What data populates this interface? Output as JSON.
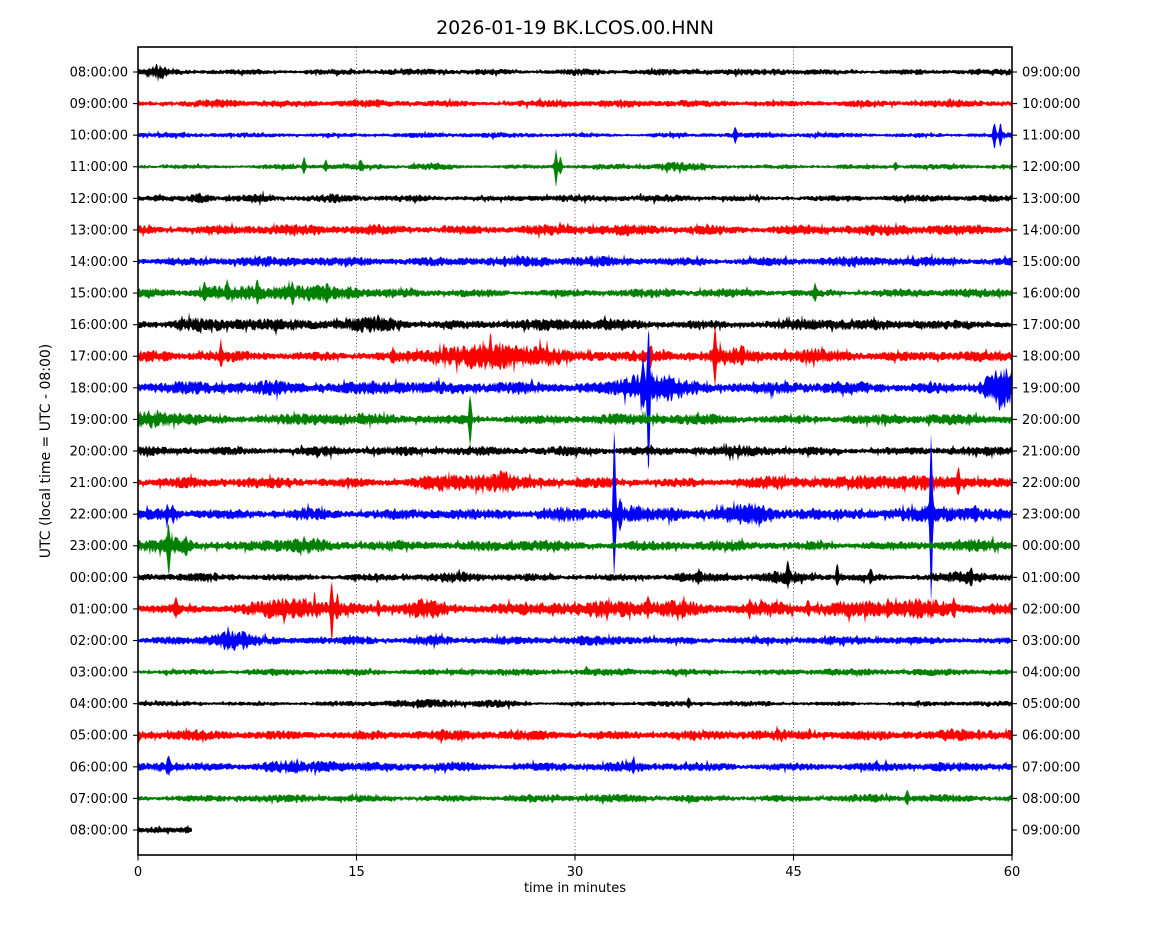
{
  "title": "2026-01-19 BK.LCOS.00.HNN",
  "y_axis": {
    "label": "UTC (local time = UTC - 08:00)"
  },
  "x_axis": {
    "label": "time in minutes",
    "ticks": [
      0,
      15,
      30,
      45,
      60
    ],
    "grid_minutes": [
      15,
      30,
      45
    ],
    "range": [
      0,
      60
    ]
  },
  "colors": {
    "frame": "#000000",
    "grid": "#000000",
    "trace_map": {
      "black": "#000000",
      "red": "#ff0000",
      "blue": "#0000ff",
      "green": "#008000"
    }
  },
  "chart_data": {
    "type": "line",
    "subtype": "helicorder-dayplot",
    "station": "BK.LCOS.00.HNN",
    "date": "2026-01-19",
    "minutes_per_row": 60,
    "note": "25 one-hour trace rows; left labels UTC start time, right labels start time + 1h; amp = baseline noise half-height px; bursts=[minute,width_min,rel_amp]; spikes=[minute,up_px,down_px]",
    "rows": [
      {
        "utc": "08:00:00",
        "local": "09:00:00",
        "color": "black",
        "amp": 2.6,
        "bursts": [
          [
            1.4,
            0.5,
            1.6
          ],
          [
            30.5,
            1.2,
            0.5
          ],
          [
            44,
            1,
            0.4
          ]
        ],
        "spikes": []
      },
      {
        "utc": "09:00:00",
        "local": "10:00:00",
        "color": "red",
        "amp": 3.0,
        "bursts": [
          [
            6,
            1.5,
            0.7
          ],
          [
            29,
            1.5,
            0.4
          ]
        ],
        "spikes": []
      },
      {
        "utc": "10:00:00",
        "local": "11:00:00",
        "color": "blue",
        "amp": 2.2,
        "bursts": [],
        "spikes": [
          [
            41,
            7,
            7
          ],
          [
            58.8,
            13,
            13
          ],
          [
            59.2,
            10,
            10
          ]
        ]
      },
      {
        "utc": "11:00:00",
        "local": "12:00:00",
        "color": "green",
        "amp": 2.2,
        "bursts": [
          [
            37,
            1.5,
            1.0
          ],
          [
            20,
            1.5,
            0.5
          ]
        ],
        "spikes": [
          [
            11.4,
            9,
            6
          ],
          [
            12.9,
            7,
            4
          ],
          [
            15.3,
            6,
            4
          ],
          [
            28.7,
            17,
            20
          ],
          [
            29,
            10,
            8
          ],
          [
            52,
            4,
            3
          ]
        ]
      },
      {
        "utc": "12:00:00",
        "local": "13:00:00",
        "color": "black",
        "amp": 2.8,
        "bursts": [
          [
            4.3,
            0.7,
            1.6
          ],
          [
            8.2,
            1,
            0.7
          ],
          [
            13.5,
            0.8,
            0.6
          ],
          [
            28,
            2,
            0.3
          ]
        ],
        "spikes": []
      },
      {
        "utc": "13:00:00",
        "local": "14:00:00",
        "color": "red",
        "amp": 4.4,
        "bursts": [],
        "spikes": []
      },
      {
        "utc": "14:00:00",
        "local": "15:00:00",
        "color": "blue",
        "amp": 4.0,
        "bursts": [
          [
            24,
            4,
            0.25
          ]
        ],
        "spikes": []
      },
      {
        "utc": "15:00:00",
        "local": "16:00:00",
        "color": "green",
        "amp": 3.6,
        "bursts": [
          [
            5,
            1,
            1.1
          ],
          [
            7.5,
            1.2,
            1.2
          ],
          [
            10,
            1.5,
            1.1
          ],
          [
            12.5,
            1.5,
            1.0
          ],
          [
            14.5,
            0.8,
            0.8
          ]
        ],
        "spikes": [
          [
            4.6,
            8,
            6
          ],
          [
            6.1,
            8,
            5
          ],
          [
            8.2,
            8,
            6
          ],
          [
            10.6,
            7,
            5
          ],
          [
            13,
            7,
            5
          ],
          [
            46.5,
            8,
            6
          ]
        ]
      },
      {
        "utc": "16:00:00",
        "local": "17:00:00",
        "color": "black",
        "amp": 4.2,
        "bursts": [
          [
            3.5,
            1.2,
            0.6
          ],
          [
            8,
            2,
            0.4
          ],
          [
            16,
            2.2,
            0.8
          ],
          [
            30,
            3,
            0.3
          ],
          [
            47,
            2,
            0.3
          ]
        ],
        "spikes": []
      },
      {
        "utc": "17:00:00",
        "local": "18:00:00",
        "color": "red",
        "amp": 4.4,
        "bursts": [
          [
            21,
            1.5,
            0.9
          ],
          [
            24.8,
            2.8,
            2.0
          ],
          [
            28,
            1.5,
            0.8
          ],
          [
            33,
            3,
            0.4
          ],
          [
            40.3,
            1.2,
            0.8
          ],
          [
            47,
            2.5,
            0.4
          ],
          [
            55,
            2,
            0.3
          ]
        ],
        "spikes": [
          [
            5.7,
            11,
            9
          ],
          [
            17.5,
            6,
            4
          ],
          [
            35.2,
            9,
            7
          ],
          [
            39.6,
            28,
            24
          ],
          [
            41.5,
            10,
            8
          ]
        ]
      },
      {
        "utc": "18:00:00",
        "local": "19:00:00",
        "color": "blue",
        "amp": 5.0,
        "bursts": [
          [
            10,
            2,
            0.4
          ],
          [
            17,
            2,
            0.6
          ],
          [
            34.8,
            1.8,
            2.2
          ],
          [
            36.5,
            1.5,
            0.8
          ],
          [
            58.9,
            1,
            2.0
          ],
          [
            59.5,
            0.8,
            1.5
          ]
        ],
        "spikes": [
          [
            35.05,
            50,
            80
          ],
          [
            34.7,
            18,
            14
          ]
        ]
      },
      {
        "utc": "19:00:00",
        "local": "20:00:00",
        "color": "green",
        "amp": 4.4,
        "bursts": [
          [
            0.8,
            1.2,
            1.1
          ],
          [
            2.5,
            1.5,
            0.6
          ],
          [
            13,
            2,
            0.3
          ]
        ],
        "spikes": [
          [
            22.8,
            22,
            29
          ]
        ]
      },
      {
        "utc": "20:00:00",
        "local": "21:00:00",
        "color": "black",
        "amp": 3.8,
        "bursts": [
          [
            13,
            1,
            0.4
          ],
          [
            30,
            2,
            0.3
          ],
          [
            42,
            1.5,
            0.4
          ]
        ],
        "spikes": []
      },
      {
        "utc": "21:00:00",
        "local": "22:00:00",
        "color": "red",
        "amp": 4.4,
        "bursts": [
          [
            20.5,
            1.5,
            0.6
          ],
          [
            23,
            2,
            0.9
          ],
          [
            25,
            1,
            1.0
          ],
          [
            44,
            2,
            0.4
          ],
          [
            50.5,
            2,
            0.6
          ],
          [
            53.5,
            2,
            0.6
          ],
          [
            57.5,
            1.5,
            0.5
          ]
        ],
        "spikes": [
          [
            56.3,
            12,
            10
          ]
        ]
      },
      {
        "utc": "22:00:00",
        "local": "23:00:00",
        "color": "blue",
        "amp": 4.4,
        "bursts": [
          [
            11.5,
            1.5,
            0.5
          ],
          [
            29.5,
            1.5,
            0.8
          ],
          [
            33.2,
            1.5,
            1.2
          ],
          [
            36.8,
            1,
            0.7
          ],
          [
            42,
            1.5,
            1.5
          ],
          [
            48.5,
            2,
            0.5
          ],
          [
            54.5,
            1.8,
            1.4
          ]
        ],
        "spikes": [
          [
            2.0,
            7,
            6
          ],
          [
            2.4,
            8,
            6
          ],
          [
            32.7,
            85,
            62
          ],
          [
            33.1,
            14,
            10
          ],
          [
            54.45,
            84,
            83
          ],
          [
            57.5,
            7,
            5
          ]
        ]
      },
      {
        "utc": "23:00:00",
        "local": "00:00:00",
        "color": "green",
        "amp": 4.0,
        "bursts": [
          [
            2.6,
            1.2,
            1.2
          ],
          [
            9,
            1.5,
            0.8
          ],
          [
            11.5,
            1.5,
            0.8
          ],
          [
            27,
            2,
            0.7
          ],
          [
            57,
            2,
            0.4
          ]
        ],
        "spikes": [
          [
            2.1,
            18,
            26
          ],
          [
            3.3,
            9,
            7
          ]
        ]
      },
      {
        "utc": "00:00:00",
        "local": "01:00:00",
        "color": "black",
        "amp": 3.4,
        "bursts": [
          [
            22,
            1,
            0.4
          ],
          [
            38,
            1,
            0.5
          ],
          [
            44.5,
            1.5,
            0.6
          ],
          [
            57,
            1.8,
            0.7
          ]
        ],
        "spikes": [
          [
            38.5,
            6,
            4
          ],
          [
            44.6,
            12,
            6
          ],
          [
            48,
            13,
            7
          ],
          [
            50.3,
            8,
            5
          ],
          [
            57.2,
            9,
            5
          ]
        ]
      },
      {
        "utc": "01:00:00",
        "local": "02:00:00",
        "color": "red",
        "amp": 4.8,
        "bursts": [
          [
            9.8,
            1.8,
            1.0
          ],
          [
            11.5,
            1,
            1.0
          ],
          [
            19.8,
            1.5,
            1.0
          ],
          [
            28,
            2.5,
            0.5
          ],
          [
            33,
            2,
            0.6
          ],
          [
            37,
            2,
            0.5
          ],
          [
            44,
            2,
            0.6
          ],
          [
            50,
            2.5,
            0.7
          ],
          [
            54,
            1.5,
            0.8
          ]
        ],
        "spikes": [
          [
            2.6,
            9,
            7
          ],
          [
            13.3,
            27,
            28
          ],
          [
            13.7,
            11,
            8
          ],
          [
            16.5,
            6,
            5
          ],
          [
            35,
            8,
            6
          ],
          [
            42,
            8,
            6
          ],
          [
            46,
            7,
            5
          ],
          [
            51.5,
            8,
            6
          ],
          [
            56,
            8,
            6
          ]
        ]
      },
      {
        "utc": "02:00:00",
        "local": "03:00:00",
        "color": "blue",
        "amp": 3.4,
        "bursts": [
          [
            6,
            1.3,
            1.5
          ],
          [
            7.2,
            0.8,
            0.9
          ],
          [
            15.5,
            1,
            0.5
          ],
          [
            20.5,
            1.2,
            0.5
          ],
          [
            33,
            2,
            0.4
          ]
        ],
        "spikes": [
          [
            6.2,
            6,
            5
          ]
        ]
      },
      {
        "utc": "03:00:00",
        "local": "04:00:00",
        "color": "green",
        "amp": 2.8,
        "bursts": [
          [
            24,
            2,
            0.5
          ],
          [
            47,
            2,
            0.3
          ]
        ],
        "spikes": []
      },
      {
        "utc": "04:00:00",
        "local": "05:00:00",
        "color": "black",
        "amp": 2.2,
        "bursts": [
          [
            20,
            3.5,
            0.8
          ],
          [
            24.5,
            1.5,
            0.6
          ]
        ],
        "spikes": [
          [
            37.8,
            6,
            4
          ]
        ]
      },
      {
        "utc": "05:00:00",
        "local": "06:00:00",
        "color": "red",
        "amp": 4.2,
        "bursts": [
          [
            52,
            2,
            0.25
          ],
          [
            57,
            2.5,
            0.45
          ]
        ],
        "spikes": []
      },
      {
        "utc": "06:00:00",
        "local": "07:00:00",
        "color": "blue",
        "amp": 3.8,
        "bursts": [
          [
            2,
            1,
            1.0
          ],
          [
            10,
            1.5,
            0.6
          ],
          [
            12.8,
            1.2,
            0.6
          ],
          [
            22,
            2,
            0.3
          ]
        ],
        "spikes": [
          [
            2.1,
            6,
            5
          ],
          [
            34,
            6,
            4
          ]
        ]
      },
      {
        "utc": "07:00:00",
        "local": "08:00:00",
        "color": "green",
        "amp": 3.2,
        "bursts": [],
        "spikes": [
          [
            52.8,
            8,
            5
          ]
        ]
      },
      {
        "utc": "08:00:00",
        "local": "09:00:00",
        "color": "black",
        "amp": 3.2,
        "bursts": [],
        "spikes": [],
        "extent": [
          0,
          3.7
        ]
      }
    ]
  }
}
